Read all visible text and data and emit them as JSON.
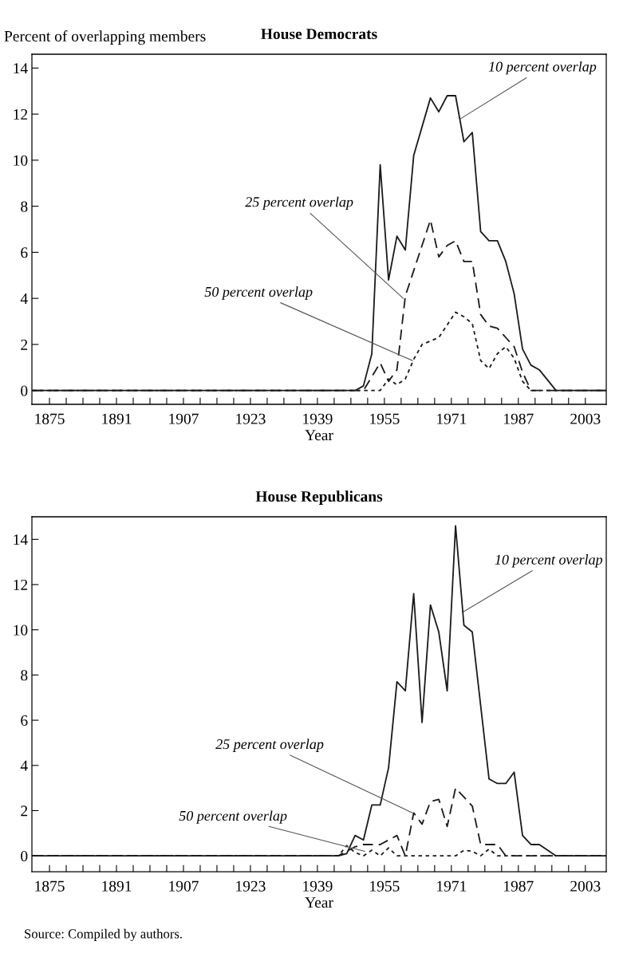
{
  "chart_data": [
    {
      "type": "line",
      "title": "House Democrats",
      "ylabel": "Percent of overlapping members",
      "xlabel": "Year",
      "xlim": [
        1870.8,
        2008
      ],
      "ylim": [
        -0.6,
        14.6
      ],
      "xticks": [
        {
          "value": 1875,
          "label": "1875"
        },
        {
          "value": 1879,
          "label": null
        },
        {
          "value": 1883,
          "label": null
        },
        {
          "value": 1887,
          "label": null
        },
        {
          "value": 1891,
          "label": "1891"
        },
        {
          "value": 1895,
          "label": null
        },
        {
          "value": 1899,
          "label": null
        },
        {
          "value": 1903,
          "label": null
        },
        {
          "value": 1907,
          "label": "1907"
        },
        {
          "value": 1911,
          "label": null
        },
        {
          "value": 1915,
          "label": null
        },
        {
          "value": 1919,
          "label": null
        },
        {
          "value": 1923,
          "label": "1923"
        },
        {
          "value": 1927,
          "label": null
        },
        {
          "value": 1931,
          "label": null
        },
        {
          "value": 1935,
          "label": null
        },
        {
          "value": 1939,
          "label": "1939"
        },
        {
          "value": 1943,
          "label": null
        },
        {
          "value": 1947,
          "label": null
        },
        {
          "value": 1951,
          "label": null
        },
        {
          "value": 1955,
          "label": "1955"
        },
        {
          "value": 1959,
          "label": null
        },
        {
          "value": 1963,
          "label": null
        },
        {
          "value": 1967,
          "label": null
        },
        {
          "value": 1971,
          "label": "1971"
        },
        {
          "value": 1975,
          "label": null
        },
        {
          "value": 1979,
          "label": null
        },
        {
          "value": 1983,
          "label": null
        },
        {
          "value": 1987,
          "label": "1987"
        },
        {
          "value": 1991,
          "label": null
        },
        {
          "value": 1995,
          "label": null
        },
        {
          "value": 1999,
          "label": null
        },
        {
          "value": 2003,
          "label": "2003"
        }
      ],
      "yticks": [
        0,
        2,
        4,
        6,
        8,
        10,
        12,
        14
      ],
      "grid": false,
      "series": [
        {
          "color": "#1a1a1a",
          "line_style": "solid",
          "x": [
            1871,
            1948,
            1950,
            1952,
            1954,
            1956,
            1958,
            1960,
            1962,
            1966,
            1968,
            1970,
            1972,
            1974,
            1976,
            1978,
            1980,
            1982,
            1984,
            1986,
            1988,
            1990,
            1992,
            1996,
            2008
          ],
          "values": [
            0,
            0,
            0.2,
            1.6,
            9.8,
            4.8,
            6.7,
            6.1,
            10.2,
            12.7,
            12.1,
            12.8,
            12.8,
            10.8,
            11.2,
            6.9,
            6.5,
            6.5,
            5.6,
            4.2,
            1.8,
            1.1,
            0.9,
            0,
            0
          ]
        },
        {
          "color": "#1a1a1a",
          "line_style": "dashed",
          "x": [
            1871,
            1950,
            1954,
            1956,
            1958,
            1960,
            1966,
            1968,
            1970,
            1972,
            1974,
            1976,
            1978,
            1980,
            1982,
            1984,
            1986,
            1988,
            1990,
            2008
          ],
          "values": [
            0,
            0,
            1.2,
            0.4,
            0.9,
            4.1,
            7.4,
            5.8,
            6.3,
            6.5,
            5.6,
            5.6,
            3.3,
            2.8,
            2.7,
            2.3,
            1.9,
            0.8,
            0,
            0
          ]
        },
        {
          "color": "#1a1a1a",
          "line_style": "dotted",
          "x": [
            1871,
            1954,
            1956,
            1958,
            1960,
            1962,
            1964,
            1968,
            1972,
            1974,
            1976,
            1978,
            1980,
            1982,
            1984,
            1986,
            1988,
            1990,
            2008
          ],
          "values": [
            0,
            0,
            0.5,
            0.25,
            0.5,
            1.35,
            2.0,
            2.3,
            3.4,
            3.2,
            2.9,
            1.3,
            0.95,
            1.6,
            1.9,
            1.4,
            0.4,
            0,
            0
          ]
        }
      ],
      "annotations": [
        {
          "text": "10 percent overlap",
          "x": 1973.2,
          "y": 11.8
        },
        {
          "text": "25 percent overlap",
          "x": 1959.5,
          "y": 4.0
        },
        {
          "text": "50 percent overlap",
          "x": 1961.7,
          "y": 1.3
        }
      ]
    },
    {
      "type": "line",
      "title": "House Republicans",
      "xlabel": "Year",
      "xlim": [
        1870.8,
        2008
      ],
      "ylim": [
        -0.7,
        15.0
      ],
      "xticks": [
        {
          "value": 1875,
          "label": "1875"
        },
        {
          "value": 1879,
          "label": null
        },
        {
          "value": 1883,
          "label": null
        },
        {
          "value": 1887,
          "label": null
        },
        {
          "value": 1891,
          "label": "1891"
        },
        {
          "value": 1895,
          "label": null
        },
        {
          "value": 1899,
          "label": null
        },
        {
          "value": 1903,
          "label": null
        },
        {
          "value": 1907,
          "label": "1907"
        },
        {
          "value": 1911,
          "label": null
        },
        {
          "value": 1915,
          "label": null
        },
        {
          "value": 1919,
          "label": null
        },
        {
          "value": 1923,
          "label": "1923"
        },
        {
          "value": 1927,
          "label": null
        },
        {
          "value": 1931,
          "label": null
        },
        {
          "value": 1935,
          "label": null
        },
        {
          "value": 1939,
          "label": "1939"
        },
        {
          "value": 1943,
          "label": null
        },
        {
          "value": 1947,
          "label": null
        },
        {
          "value": 1951,
          "label": null
        },
        {
          "value": 1955,
          "label": "1955"
        },
        {
          "value": 1959,
          "label": null
        },
        {
          "value": 1963,
          "label": null
        },
        {
          "value": 1967,
          "label": null
        },
        {
          "value": 1971,
          "label": "1971"
        },
        {
          "value": 1975,
          "label": null
        },
        {
          "value": 1979,
          "label": null
        },
        {
          "value": 1983,
          "label": null
        },
        {
          "value": 1987,
          "label": "1987"
        },
        {
          "value": 1991,
          "label": null
        },
        {
          "value": 1995,
          "label": null
        },
        {
          "value": 1999,
          "label": null
        },
        {
          "value": 2003,
          "label": "2003"
        }
      ],
      "yticks": [
        0,
        2,
        4,
        6,
        8,
        10,
        12,
        14
      ],
      "grid": false,
      "series": [
        {
          "color": "#1a1a1a",
          "line_style": "solid",
          "x": [
            1871,
            1944,
            1946,
            1948,
            1950,
            1952,
            1954,
            1956,
            1958,
            1960,
            1962,
            1964,
            1966,
            1968,
            1970,
            1972,
            1974,
            1976,
            1980,
            1982,
            1984,
            1986,
            1988,
            1990,
            1992,
            1996,
            2008
          ],
          "values": [
            0,
            0,
            0.1,
            0.9,
            0.7,
            2.25,
            2.25,
            3.9,
            7.7,
            7.3,
            11.6,
            5.9,
            11.1,
            9.9,
            7.3,
            14.6,
            10.2,
            9.9,
            3.4,
            3.2,
            3.2,
            3.7,
            0.9,
            0.5,
            0.5,
            0,
            0
          ]
        },
        {
          "color": "#1a1a1a",
          "line_style": "dashed",
          "x": [
            1871,
            1944,
            1948,
            1950,
            1952,
            1954,
            1956,
            1958,
            1960,
            1962,
            1964,
            1966,
            1968,
            1970,
            1972,
            1974,
            1976,
            1978,
            1980,
            1982,
            1984,
            2008
          ],
          "values": [
            0,
            0,
            0.4,
            0.5,
            0.5,
            0.5,
            0.7,
            0.9,
            0,
            1.9,
            1.4,
            2.4,
            2.5,
            1.3,
            3.0,
            2.6,
            2.2,
            0.5,
            0.5,
            0.5,
            0,
            0
          ]
        },
        {
          "color": "#1a1a1a",
          "line_style": "dotted",
          "x": [
            1871,
            1944,
            1946,
            1948,
            1950,
            1952,
            1954,
            1956,
            1958,
            1972,
            1974,
            1976,
            1978,
            1980,
            1982,
            2008
          ],
          "values": [
            0,
            0,
            0.45,
            0.15,
            0,
            0.25,
            0,
            0.35,
            0,
            0,
            0.25,
            0.2,
            0,
            0.3,
            0,
            0
          ]
        }
      ],
      "annotations": [
        {
          "text": "10 percent overlap",
          "x": 1973.9,
          "y": 10.8
        },
        {
          "text": "25 percent overlap",
          "x": 1961.7,
          "y": 1.9
        },
        {
          "text": "50 percent overlap",
          "x": 1950.3,
          "y": 0.2
        },
        "Source: Compiled by authors."
      ]
    }
  ]
}
